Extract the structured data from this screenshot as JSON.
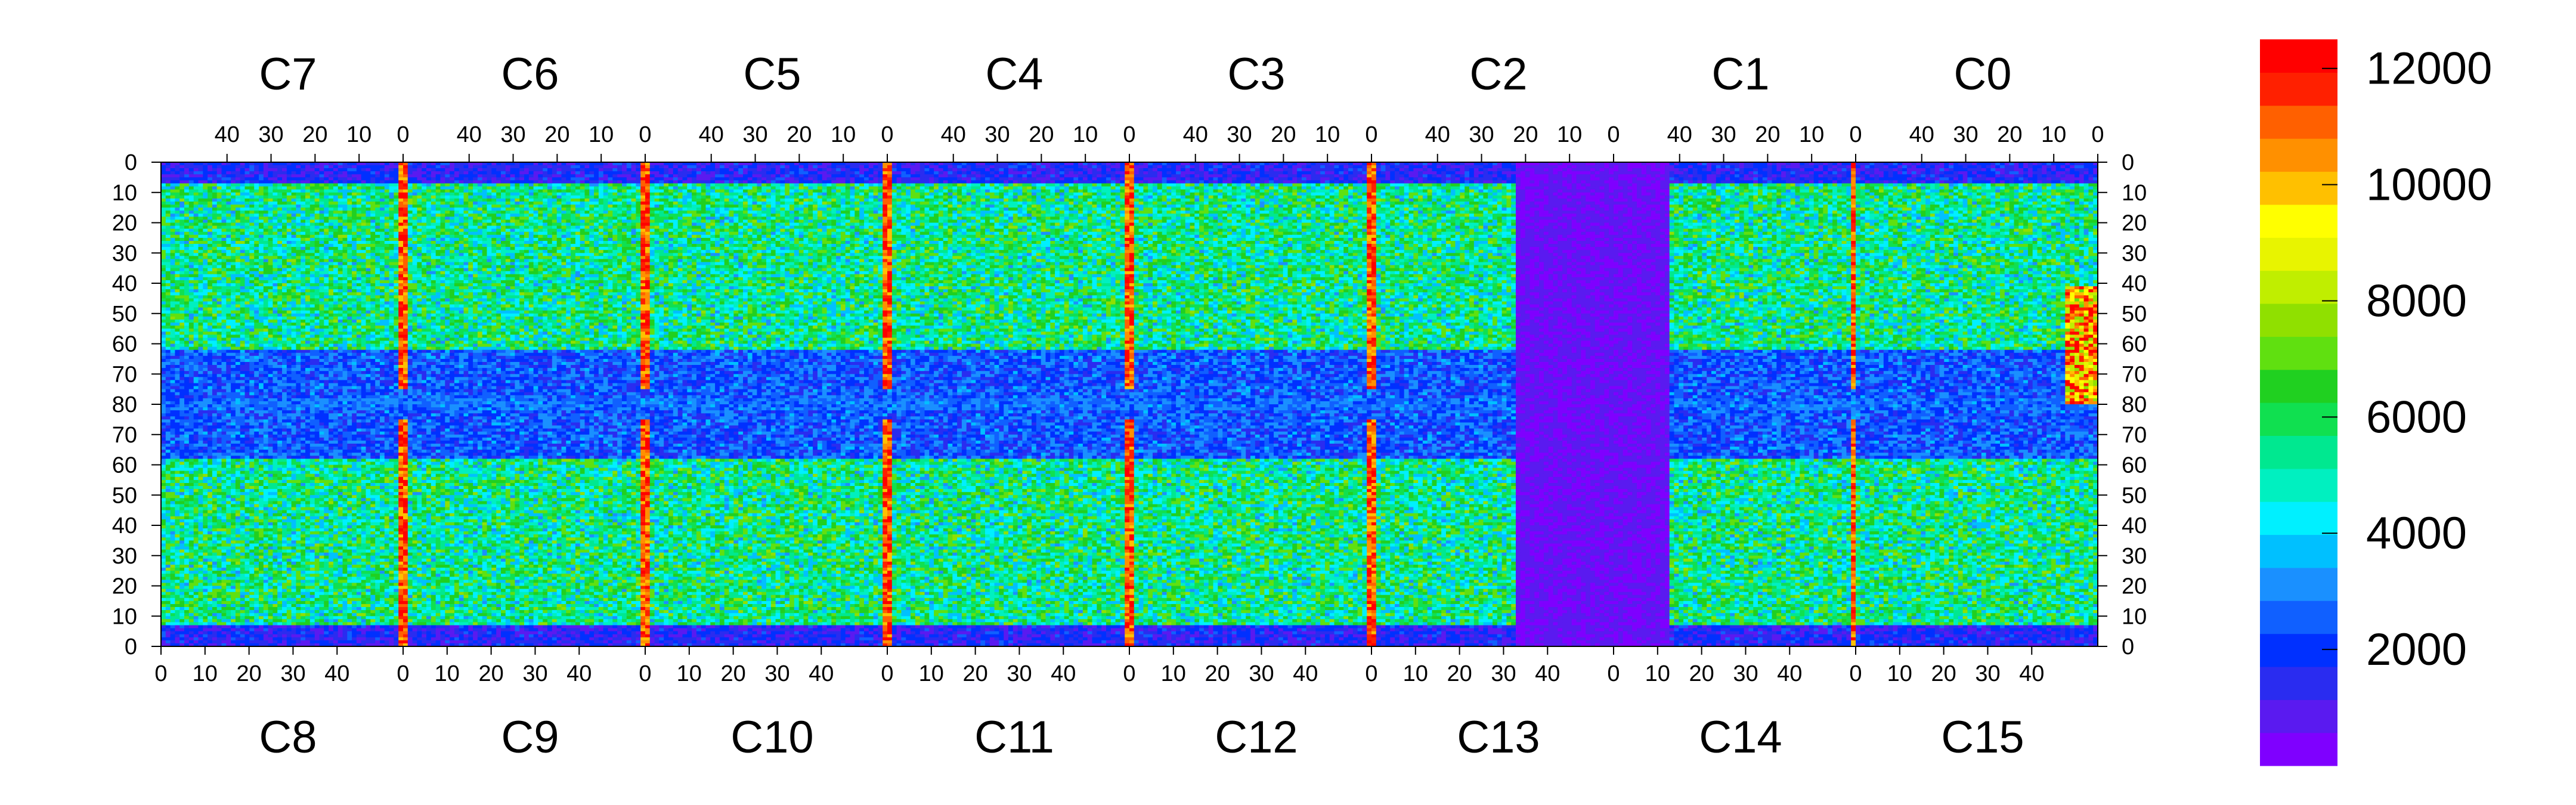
{
  "chart_data": {
    "type": "heatmap",
    "title": "",
    "xlabel": "",
    "ylabel": "",
    "top_chips": [
      "C7",
      "C6",
      "C5",
      "C4",
      "C3",
      "C2",
      "C1",
      "C0"
    ],
    "bottom_chips": [
      "C8",
      "C9",
      "C10",
      "C11",
      "C12",
      "C13",
      "C14",
      "C15"
    ],
    "top_x_ticks": [
      "40",
      "30",
      "20",
      "10",
      "0"
    ],
    "bottom_x_ticks": [
      "0",
      "10",
      "20",
      "30",
      "40"
    ],
    "y_ticks": [
      "0",
      "10",
      "20",
      "30",
      "40",
      "50",
      "60",
      "70",
      "80",
      "70",
      "60",
      "50",
      "40",
      "30",
      "20",
      "10",
      "0"
    ],
    "colorbar": {
      "min": 0,
      "max": 12500,
      "tick_values": [
        2000,
        4000,
        6000,
        8000,
        10000,
        12000
      ],
      "tick_labels": [
        "2000",
        "4000",
        "6000",
        "8000",
        "10000",
        "12000"
      ],
      "colors": [
        "#7f00ff",
        "#5a1af0",
        "#2a2cf0",
        "#0030ff",
        "#1060ff",
        "#1a90ff",
        "#00c0ff",
        "#00f0ff",
        "#00f0c0",
        "#00e890",
        "#10e050",
        "#20d020",
        "#60e010",
        "#90e000",
        "#c0ee00",
        "#e8f400",
        "#ffff00",
        "#ffc000",
        "#ff9000",
        "#ff6000",
        "#ff2000",
        "#ff0000"
      ]
    },
    "chips_per_row": 8,
    "columns_per_chip": 52,
    "rows_per_half": 80,
    "typical_counts": {
      "central_band": 2500,
      "core_region": 6000,
      "chip_boundary_columns": 11500,
      "dead_region": 600,
      "top_right_hotspot": 12000
    },
    "grid": false,
    "legend": "colorbar-right"
  }
}
